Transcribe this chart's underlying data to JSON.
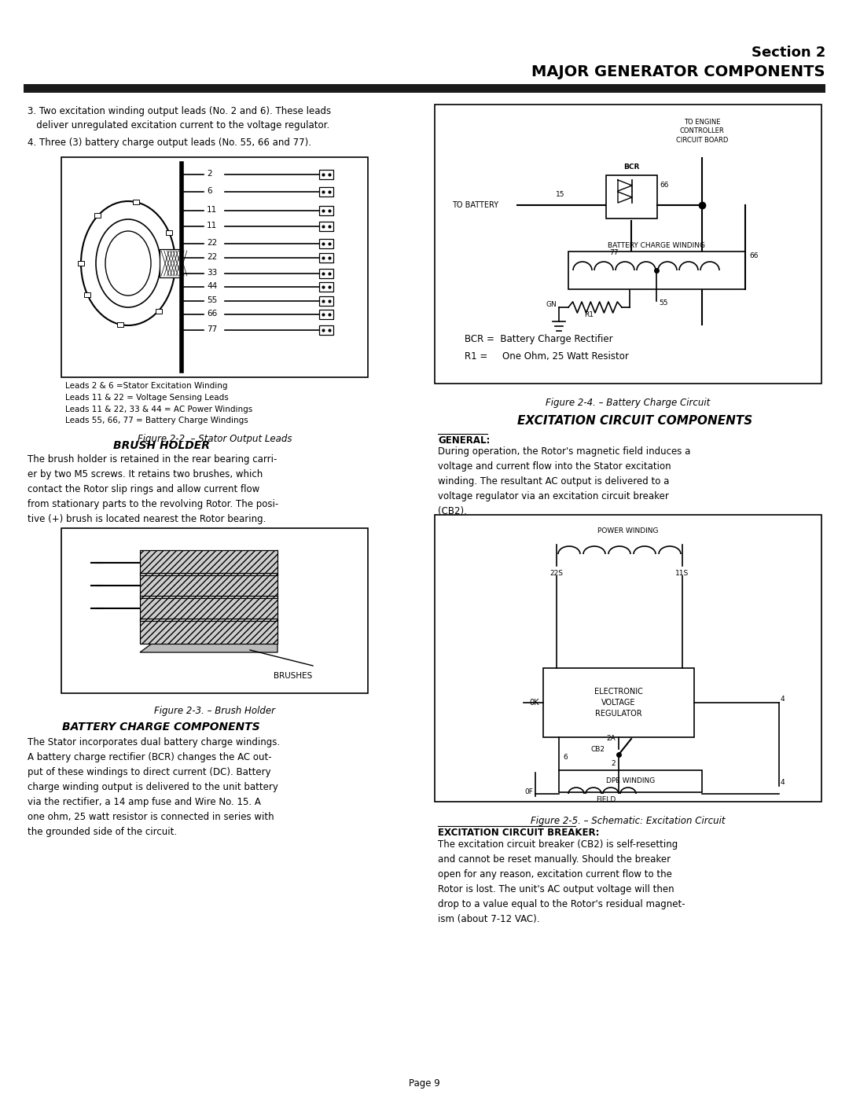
{
  "page_bg": "#ffffff",
  "section_title": "Section 2",
  "section_subtitle": "MAJOR GENERATOR COMPONENTS",
  "page_number": "Page 9",
  "text_blocks": {
    "item3": "3. Two excitation winding output leads (No. 2 and 6). These leads\n   deliver unregulated excitation current to the voltage regulator.",
    "item4": "4. Three (3) battery charge output leads (No. 55, 66 and 77).",
    "fig22_caption": "Figure 2-2. – Stator Output Leads",
    "fig23_caption": "Figure 2-3. – Brush Holder",
    "fig24_caption": "Figure 2-4. – Battery Charge Circuit",
    "fig25_caption": "Figure 2-5. – Schematic: Excitation Circuit",
    "brush_holder_title": "BRUSH HOLDER",
    "brush_holder_text": "The brush holder is retained in the rear bearing carri-\ner by two M5 screws. It retains two brushes, which\ncontact the Rotor slip rings and allow current flow\nfrom stationary parts to the revolving Rotor. The posi-\ntive (+) brush is located nearest the Rotor bearing.",
    "battery_title": "BATTERY CHARGE COMPONENTS",
    "battery_text": "The Stator incorporates dual battery charge windings.\nA battery charge rectifier (BCR) changes the AC out-\nput of these windings to direct current (DC). Battery\ncharge winding output is delivered to the unit battery\nvia the rectifier, a 14 amp fuse and Wire No. 15. A\none ohm, 25 watt resistor is connected in series with\nthe grounded side of the circuit.",
    "excitation_title": "EXCITATION CIRCUIT COMPONENTS",
    "general_label": "GENERAL:",
    "general_text": "During operation, the Rotor's magnetic field induces a\nvoltage and current flow into the Stator excitation\nwinding. The resultant AC output is delivered to a\nvoltage regulator via an excitation circuit breaker\n(CB2).",
    "excitation_breaker_label": "EXCITATION CIRCUIT BREAKER:",
    "excitation_breaker_text": "The excitation circuit breaker (CB2) is self-resetting\nand cannot be reset manually. Should the breaker\nopen for any reason, excitation current flow to the\nRotor is lost. The unit's AC output voltage will then\ndrop to a value equal to the Rotor's residual magnet-\nism (about 7-12 VAC).",
    "fig22_leads": "Leads 2 & 6 =Stator Excitation Winding\nLeads 11 & 22 = Voltage Sensing Leads\nLeads 11 & 22, 33 & 44 = AC Power Windings\nLeads 55, 66, 77 = Battery Charge Windings",
    "fig24_legend": "BCR =  Battery Charge Rectifier\nR1 =     One Ohm, 25 Watt Resistor"
  },
  "font_sizes": {
    "section_title": 13,
    "section_subtitle": 14,
    "body": 8.5,
    "caption_italic": 8.5,
    "figure_heading": 10,
    "small": 7
  }
}
